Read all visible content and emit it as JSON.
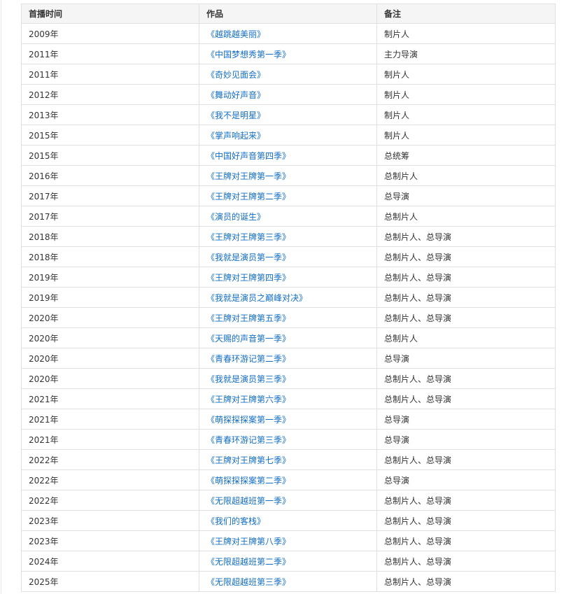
{
  "table": {
    "headers": [
      "首播时间",
      "作品",
      "备注"
    ],
    "link_color": "#136ec2",
    "rows": [
      [
        "2009年",
        "《越跳越美丽》",
        "制片人"
      ],
      [
        "2011年",
        "《中国梦想秀第一季》",
        "主力导演"
      ],
      [
        "2011年",
        "《奇妙见面会》",
        "制片人"
      ],
      [
        "2012年",
        "《舞动好声音》",
        "制片人"
      ],
      [
        "2013年",
        "《我不是明星》",
        "制片人"
      ],
      [
        "2015年",
        "《掌声响起来》",
        "制片人"
      ],
      [
        "2015年",
        "《中国好声音第四季》",
        "总统筹"
      ],
      [
        "2016年",
        "《王牌对王牌第一季》",
        "总制片人"
      ],
      [
        "2017年",
        "《王牌对王牌第二季》",
        "总导演"
      ],
      [
        "2017年",
        "《演员的诞生》",
        "总制片人"
      ],
      [
        "2018年",
        "《王牌对王牌第三季》",
        "总制片人、总导演"
      ],
      [
        "2018年",
        "《我就是演员第一季》",
        "总制片人、总导演"
      ],
      [
        "2019年",
        "《王牌对王牌第四季》",
        "总制片人、总导演"
      ],
      [
        "2019年",
        "《我就是演员之巅峰对决》",
        "总制片人、总导演"
      ],
      [
        "2020年",
        "《王牌对王牌第五季》",
        "总制片人、总导演"
      ],
      [
        "2020年",
        "《天赐的声音第一季》",
        "总制片人"
      ],
      [
        "2020年",
        "《青春环游记第二季》",
        "总导演"
      ],
      [
        "2020年",
        "《我就是演员第三季》",
        "总制片人、总导演"
      ],
      [
        "2021年",
        "《王牌对王牌第六季》",
        "总制片人、总导演"
      ],
      [
        "2021年",
        "《萌探探探案第一季》",
        "总导演"
      ],
      [
        "2021年",
        "《青春环游记第三季》",
        "总导演"
      ],
      [
        "2022年",
        "《王牌对王牌第七季》",
        "总制片人、总导演"
      ],
      [
        "2022年",
        "《萌探探探案第二季》",
        "总导演"
      ],
      [
        "2022年",
        "《无限超越班第一季》",
        "总制片人、总导演"
      ],
      [
        "2023年",
        "《我们的客栈》",
        "总制片人、总导演"
      ],
      [
        "2023年",
        "《王牌对王牌第八季》",
        "总制片人、总导演"
      ],
      [
        "2024年",
        "《无限超越班第二季》",
        "总制片人、总导演"
      ],
      [
        "2025年",
        "《无限超越班第三季》",
        "总制片人、总导演"
      ]
    ]
  }
}
